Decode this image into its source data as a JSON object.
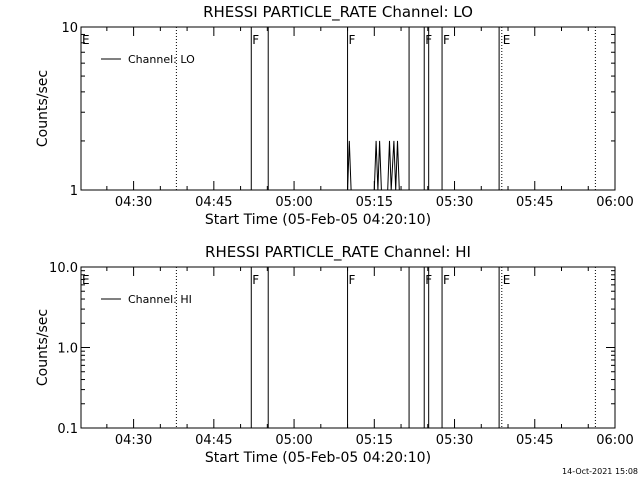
{
  "chart_data": [
    {
      "type": "line",
      "title": "RHESSI PARTICLE_RATE Channel: LO",
      "xlabel": "Start Time (05-Feb-05 04:20:10)",
      "ylabel": "Counts/sec",
      "yscale": "log",
      "ylim": [
        1,
        10
      ],
      "yticks": [
        1,
        10
      ],
      "ytick_labels": [
        "1",
        "10"
      ],
      "xlim": [
        "04:20:10",
        "06:00:00"
      ],
      "xticks": [
        "04:30",
        "04:45",
        "05:00",
        "05:15",
        "05:30",
        "05:45",
        "06:00"
      ],
      "grid": false,
      "legend": {
        "position": "top-left",
        "entries": [
          "Channel: LO"
        ]
      },
      "series": [
        {
          "name": "Channel: LO",
          "points": [
            [
              "05:10:00",
              1
            ],
            [
              "05:10:20",
              2
            ],
            [
              "05:10:40",
              1
            ],
            [
              "05:15:00",
              1
            ],
            [
              "05:15:20",
              2
            ],
            [
              "05:15:40",
              1
            ],
            [
              "05:16:00",
              2
            ],
            [
              "05:16:20",
              1
            ],
            [
              "05:17:30",
              1
            ],
            [
              "05:17:50",
              2
            ],
            [
              "05:18:10",
              1
            ],
            [
              "05:18:40",
              2
            ],
            [
              "05:19:00",
              1
            ],
            [
              "05:19:20",
              2
            ],
            [
              "05:19:40",
              1
            ]
          ]
        }
      ],
      "flags": [
        {
          "label": "E",
          "time": "04:20:10",
          "style": "solid"
        },
        {
          "label": "",
          "time": "04:38:00",
          "style": "dotted"
        },
        {
          "label": "F",
          "time": "04:52:00",
          "style": "solid"
        },
        {
          "label": "",
          "time": "04:55:10",
          "style": "solid"
        },
        {
          "label": "F",
          "time": "05:10:00",
          "style": "solid"
        },
        {
          "label": "",
          "time": "05:21:30",
          "style": "solid"
        },
        {
          "label": "F",
          "time": "05:24:20",
          "style": "solid"
        },
        {
          "label": "",
          "time": "05:25:10",
          "style": "solid"
        },
        {
          "label": "F",
          "time": "05:27:40",
          "style": "solid"
        },
        {
          "label": "",
          "time": "05:38:20",
          "style": "solid"
        },
        {
          "label": "E",
          "time": "05:38:50",
          "style": "dotted"
        },
        {
          "label": "",
          "time": "05:56:20",
          "style": "dotted"
        }
      ]
    },
    {
      "type": "line",
      "title": "RHESSI PARTICLE_RATE Channel: HI",
      "xlabel": "Start Time (05-Feb-05 04:20:10)",
      "ylabel": "Counts/sec",
      "yscale": "log",
      "ylim": [
        0.1,
        10
      ],
      "yticks": [
        0.1,
        1,
        10
      ],
      "ytick_labels": [
        "0.1",
        "1.0",
        "10.0"
      ],
      "xlim": [
        "04:20:10",
        "06:00:00"
      ],
      "xticks": [
        "04:30",
        "04:45",
        "05:00",
        "05:15",
        "05:30",
        "05:45",
        "06:00"
      ],
      "grid": false,
      "legend": {
        "position": "top-left",
        "entries": [
          "Channel: HI"
        ]
      },
      "series": [
        {
          "name": "Channel: HI",
          "points": []
        }
      ],
      "flags": [
        {
          "label": "E",
          "time": "04:20:10",
          "style": "solid"
        },
        {
          "label": "",
          "time": "04:38:00",
          "style": "dotted"
        },
        {
          "label": "F",
          "time": "04:52:00",
          "style": "solid"
        },
        {
          "label": "",
          "time": "04:55:10",
          "style": "solid"
        },
        {
          "label": "F",
          "time": "05:10:00",
          "style": "solid"
        },
        {
          "label": "",
          "time": "05:21:30",
          "style": "solid"
        },
        {
          "label": "F",
          "time": "05:24:20",
          "style": "solid"
        },
        {
          "label": "",
          "time": "05:25:10",
          "style": "solid"
        },
        {
          "label": "F",
          "time": "05:27:40",
          "style": "solid"
        },
        {
          "label": "",
          "time": "05:38:20",
          "style": "solid"
        },
        {
          "label": "E",
          "time": "05:38:50",
          "style": "dotted"
        },
        {
          "label": "",
          "time": "05:56:20",
          "style": "dotted"
        }
      ]
    }
  ],
  "footer": {
    "timestamp": "14-Oct-2021 15:08"
  }
}
